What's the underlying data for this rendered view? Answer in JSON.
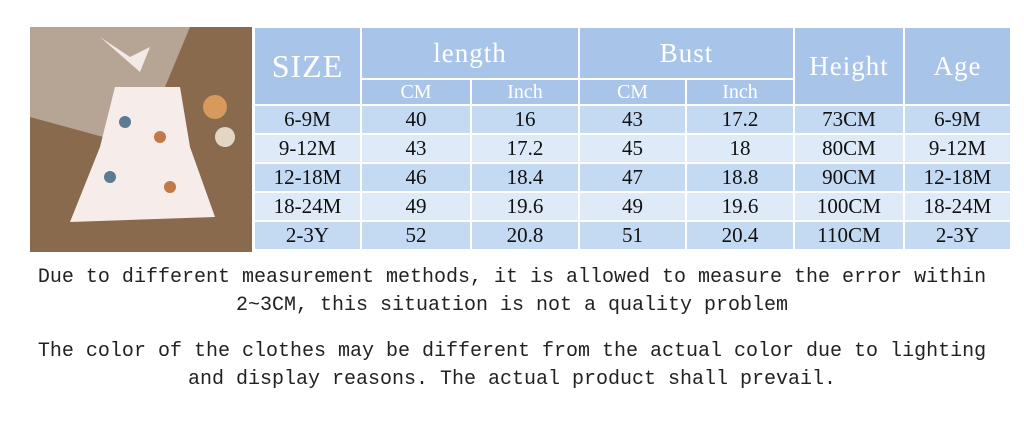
{
  "table": {
    "header": {
      "size": "SIZE",
      "length": "length",
      "bust": "Bust",
      "height": "Height",
      "age": "Age",
      "length_units": [
        "CM",
        "Inch"
      ],
      "bust_units": [
        "CM",
        "Inch"
      ]
    },
    "rows": [
      [
        "6-9M",
        "40",
        "16",
        "43",
        "17.2",
        "73CM",
        "6-9M"
      ],
      [
        "9-12M",
        "43",
        "17.2",
        "45",
        "18",
        "80CM",
        "9-12M"
      ],
      [
        "12-18M",
        "46",
        "18.4",
        "47",
        "18.8",
        "90CM",
        "12-18M"
      ],
      [
        "18-24M",
        "49",
        "19.6",
        "49",
        "19.6",
        "100CM",
        "18-24M"
      ],
      [
        "2-3Y",
        "52",
        "20.8",
        "51",
        "20.4",
        "110CM",
        "2-3Y"
      ]
    ]
  },
  "notes": [
    "Due to different measurement methods, it is allowed to measure the error within 2~3CM, this situation is not a quality problem",
    "The color of the clothes may be different from the actual color due to lighting and display reasons. The actual product shall prevail."
  ]
}
